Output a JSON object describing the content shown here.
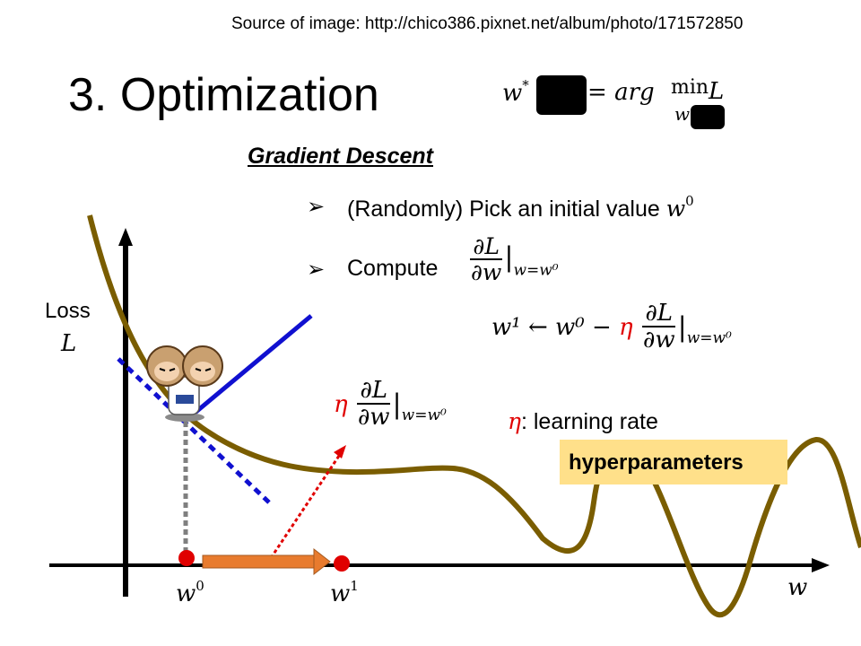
{
  "source": "Source of image: http://chico386.pixnet.net/album/photo/171572850",
  "title": "3. Optimization",
  "formula": {
    "lhs": "w",
    "equals": "=",
    "argmin": "arg",
    "min": "min",
    "L": "L",
    "sub_w": "w"
  },
  "heading": "Gradient Descent",
  "bullets": [
    {
      "marker": "➢",
      "text": "(Randomly) Pick an initial value",
      "var": "w",
      "sup": "0"
    },
    {
      "marker": "➢",
      "text": "Compute"
    }
  ],
  "deriv": {
    "num": "∂L",
    "den": "∂w",
    "eval": "w=w⁰"
  },
  "update": {
    "lhs": "w¹",
    "arrow": "←",
    "w0": "w⁰",
    "minus": "−",
    "eta": "η"
  },
  "learning_rate": ": learning rate",
  "hyperparameters": "hyperparameters",
  "axis": {
    "ylabel": "Loss",
    "ysymbol": "L",
    "xlabel": "w"
  },
  "points": {
    "w0": {
      "base": "w",
      "sup": "0"
    },
    "w1": {
      "base": "w",
      "sup": "1"
    }
  },
  "colors": {
    "curve": "#7a5d00",
    "tangent": "#1010d0",
    "accent_red": "#e00000",
    "arrow_orange": "#e87b2e",
    "highlight": "#ffe08a"
  }
}
